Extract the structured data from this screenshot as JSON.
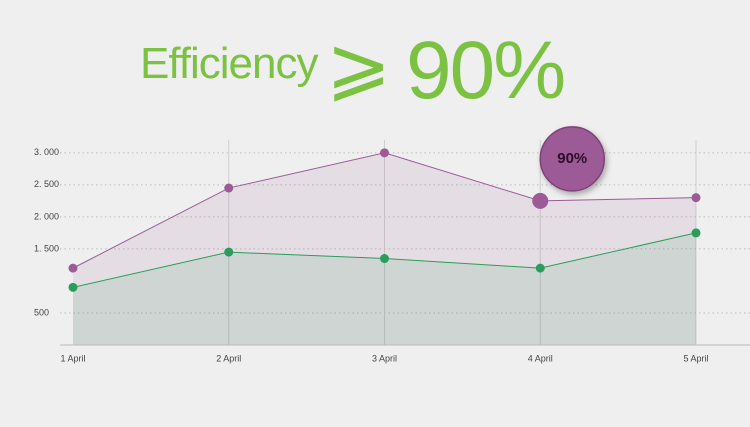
{
  "chart_data": {
    "type": "area",
    "title": "Efficiency",
    "title_symbol": "⩾",
    "title_value": "90%",
    "categories": [
      "1 April",
      "2 April",
      "3 April",
      "4 April",
      "5 April"
    ],
    "series": [
      {
        "color": "#9c5a97",
        "values": [
          1200,
          2450,
          3000,
          2250,
          2300
        ]
      },
      {
        "color": "#2a9d5c",
        "values": [
          900,
          1450,
          1350,
          1200,
          1750
        ]
      }
    ],
    "ylim": [
      0,
      3200
    ],
    "yticks": [
      {
        "value": 3000,
        "label": "3. 000"
      },
      {
        "value": 2500,
        "label": "2. 500"
      },
      {
        "value": 2000,
        "label": "2. 000"
      },
      {
        "value": 1500,
        "label": "1. 500"
      },
      500
    ],
    "grid": true,
    "annotation": {
      "text": "90%"
    }
  }
}
